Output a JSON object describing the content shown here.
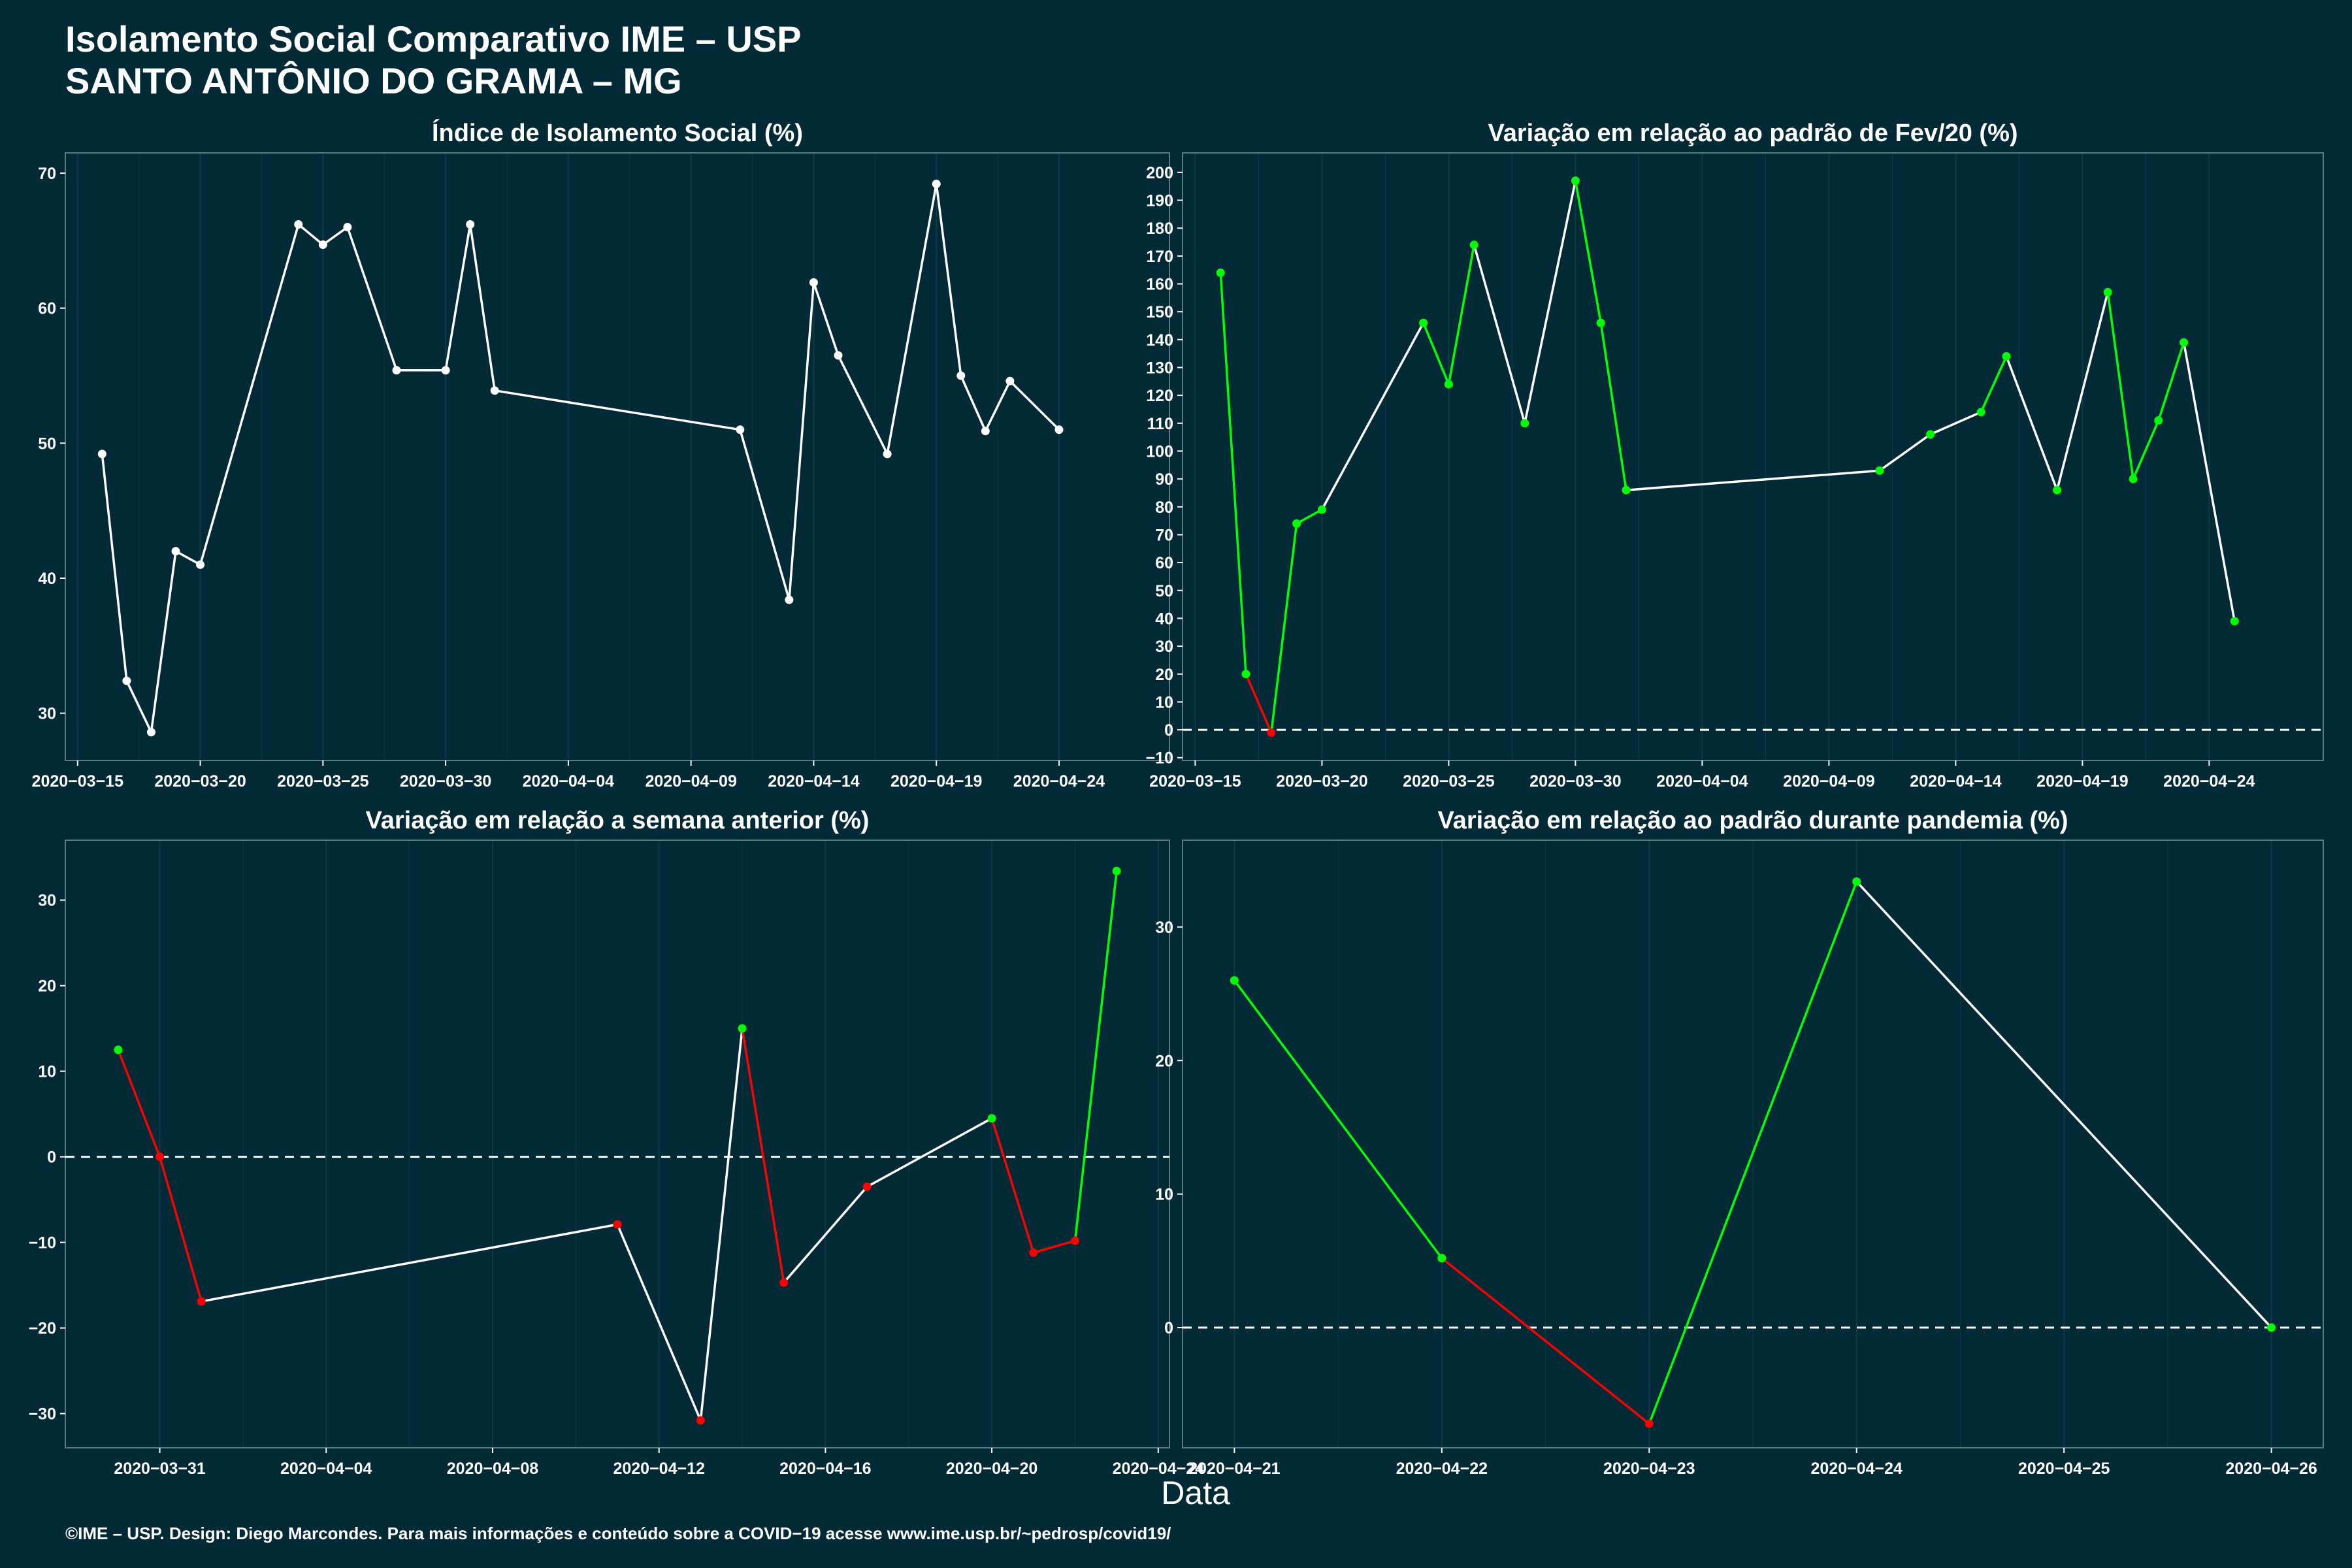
{
  "title_line1": "Isolamento Social Comparativo IME – USP",
  "title_line2": "SANTO ANTÔNIO DO GRAMA – MG",
  "footer": "©IME – USP. Design: Diego Marcondes. Para mais informações e conteúdo sobre a COVID−19 acesse www.ime.usp.br/~pedrosp/covid19/",
  "xlabel": "Data",
  "colors": {
    "background": "#022a36",
    "up": "#00ff00",
    "down": "#ff0000",
    "neutral": "#ffffff",
    "grid": "#0e3b47"
  },
  "chart_data": [
    {
      "type": "line",
      "title": "Índice de Isolamento Social (%)",
      "ylim": [
        26.5,
        71.5
      ],
      "yticks": [
        30,
        40,
        50,
        60,
        70
      ],
      "ytick_labels": [
        "30",
        "40",
        "50",
        "60",
        "70"
      ],
      "xlim": [
        -1.5,
        43.5
      ],
      "xticks": [
        -1,
        4,
        9,
        14,
        19,
        24,
        29,
        34,
        39
      ],
      "xtick_labels": [
        "2020−03−15",
        "2020−03−20",
        "2020−03−25",
        "2020−03−30",
        "2020−04−04",
        "2020−04−09",
        "2020−04−14",
        "2020−04−19",
        "2020−04−24"
      ],
      "zero_line": false,
      "x": [
        0,
        1,
        2,
        3,
        4,
        8,
        9,
        10,
        12,
        14,
        15,
        16,
        26,
        28,
        29,
        30,
        32,
        34,
        35,
        36,
        37,
        39
      ],
      "values": [
        49.2,
        32.4,
        28.6,
        42.0,
        41.0,
        66.2,
        64.7,
        66.0,
        55.4,
        55.4,
        66.2,
        53.9,
        51.0,
        38.4,
        61.9,
        56.5,
        49.2,
        69.2,
        55.0,
        50.9,
        54.6,
        51.0
      ],
      "point_colors": [
        "neutral",
        "neutral",
        "neutral",
        "neutral",
        "neutral",
        "neutral",
        "neutral",
        "neutral",
        "neutral",
        "neutral",
        "neutral",
        "neutral",
        "neutral",
        "neutral",
        "neutral",
        "neutral",
        "neutral",
        "neutral",
        "neutral",
        "neutral",
        "neutral",
        "neutral"
      ],
      "segment_colors": [
        "neutral",
        "neutral",
        "neutral",
        "neutral",
        "neutral",
        "neutral",
        "neutral",
        "neutral",
        "neutral",
        "neutral",
        "neutral",
        "neutral",
        "neutral",
        "neutral",
        "neutral",
        "neutral",
        "neutral",
        "neutral",
        "neutral",
        "neutral",
        "neutral"
      ]
    },
    {
      "type": "line",
      "title": "Variação em relação ao padrão de Fev/20 (%)",
      "ylim": [
        -11,
        207
      ],
      "yticks": [
        -10,
        0,
        10,
        20,
        30,
        40,
        50,
        60,
        70,
        80,
        90,
        100,
        110,
        120,
        130,
        140,
        150,
        160,
        170,
        180,
        190,
        200
      ],
      "ytick_labels": [
        "−10",
        "0",
        "10",
        "20",
        "30",
        "40",
        "50",
        "60",
        "70",
        "80",
        "90",
        "100",
        "110",
        "120",
        "130",
        "140",
        "150",
        "160",
        "170",
        "180",
        "190",
        "200"
      ],
      "xlim": [
        -1.5,
        43.5
      ],
      "xticks": [
        -1,
        4,
        9,
        14,
        19,
        24,
        29,
        34,
        39
      ],
      "xtick_labels": [
        "2020−03−15",
        "2020−03−20",
        "2020−03−25",
        "2020−03−30",
        "2020−04−04",
        "2020−04−09",
        "2020−04−14",
        "2020−04−19",
        "2020−04−24"
      ],
      "zero_line": true,
      "x": [
        0,
        1,
        2,
        3,
        4,
        8,
        9,
        10,
        12,
        14,
        15,
        16,
        26,
        28,
        30,
        31,
        33,
        35,
        36,
        37,
        38,
        40
      ],
      "values": [
        164,
        20,
        -1,
        74,
        79,
        146,
        124,
        174,
        110,
        197,
        146,
        86,
        93,
        106,
        114,
        134,
        86,
        157,
        90,
        111,
        139,
        39
      ],
      "point_colors": [
        "up",
        "up",
        "down",
        "up",
        "up",
        "up",
        "up",
        "up",
        "up",
        "up",
        "up",
        "up",
        "up",
        "up",
        "up",
        "up",
        "up",
        "up",
        "up",
        "up",
        "up",
        "up"
      ],
      "segment_colors": [
        "up",
        "down",
        "up",
        "up",
        "neutral",
        "up",
        "up",
        "neutral",
        "neutral",
        "up",
        "up",
        "neutral",
        "neutral",
        "neutral",
        "up",
        "neutral",
        "neutral",
        "up",
        "up",
        "up",
        "neutral"
      ]
    },
    {
      "type": "line",
      "title": "Variação em relação a semana anterior (%)",
      "ylim": [
        -34,
        37
      ],
      "yticks": [
        -30,
        -20,
        -10,
        0,
        10,
        20,
        30
      ],
      "ytick_labels": [
        "−30",
        "−20",
        "−10",
        "0",
        "10",
        "20",
        "30"
      ],
      "xlim": [
        -1.27,
        25.27
      ],
      "xticks": [
        1,
        5,
        9,
        13,
        17,
        21,
        25
      ],
      "xtick_labels": [
        "2020−03−31",
        "2020−04−04",
        "2020−04−08",
        "2020−04−12",
        "2020−04−16",
        "2020−04−20",
        "2020−04−24"
      ],
      "zero_line": true,
      "x": [
        0,
        1,
        2,
        12,
        14,
        15,
        16,
        18,
        21,
        22,
        23,
        24
      ],
      "values": [
        12.5,
        0,
        -16.9,
        -7.9,
        -30.8,
        15.0,
        -14.7,
        -3.5,
        4.5,
        -11.2,
        -9.8,
        33.4
      ],
      "point_colors": [
        "up",
        "down",
        "down",
        "down",
        "down",
        "up",
        "down",
        "down",
        "up",
        "down",
        "down",
        "up"
      ],
      "segment_colors": [
        "down",
        "down",
        "neutral",
        "neutral",
        "neutral",
        "down",
        "neutral",
        "neutral",
        "down",
        "down",
        "up"
      ]
    },
    {
      "type": "line",
      "title": "Variação em relação ao padrão durante pandemia (%)",
      "ylim": [
        -9,
        36.5
      ],
      "yticks": [
        0,
        10,
        20,
        30
      ],
      "ytick_labels": [
        "0",
        "10",
        "20",
        "30"
      ],
      "xlim": [
        -0.25,
        5.25
      ],
      "xticks": [
        0,
        1,
        2,
        3,
        4,
        5
      ],
      "xtick_labels": [
        "2020−04−21",
        "2020−04−22",
        "2020−04−23",
        "2020−04−24",
        "2020−04−25",
        "2020−04−26"
      ],
      "zero_line": true,
      "x": [
        0,
        1,
        2,
        3,
        5
      ],
      "values": [
        26.0,
        5.2,
        -7.2,
        33.4,
        0
      ],
      "point_colors": [
        "up",
        "up",
        "down",
        "up",
        "up"
      ],
      "segment_colors": [
        "up",
        "down",
        "up",
        "neutral"
      ]
    }
  ]
}
